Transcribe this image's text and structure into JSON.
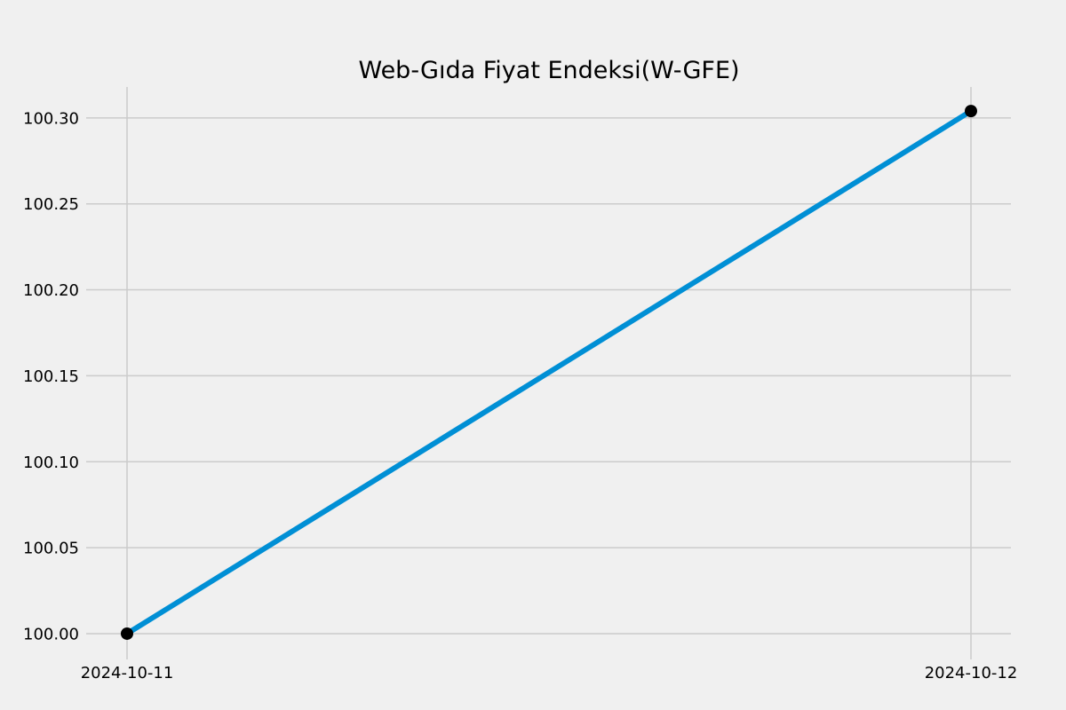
{
  "chart_data": {
    "type": "line",
    "title": "Web-Gıda Fiyat Endeksi(W-GFE)",
    "xlabel": "",
    "ylabel": "",
    "x": [
      "2024-10-11",
      "2024-10-12"
    ],
    "series": [
      {
        "values": [
          100.0,
          100.304
        ],
        "color": "#008fd5",
        "marker_color": "#000000",
        "marker": "circle"
      }
    ],
    "x_ticks": [
      "2024-10-11",
      "2024-10-12"
    ],
    "y_ticks": [
      100.0,
      100.05,
      100.1,
      100.15,
      100.2,
      100.25,
      100.3
    ],
    "y_tick_labels": [
      "100.00",
      "100.05",
      "100.10",
      "100.15",
      "100.20",
      "100.25",
      "100.30"
    ],
    "ylim": [
      99.985,
      100.318
    ],
    "grid": true,
    "legend": "none",
    "background_color": "#f0f0f0",
    "grid_color": "#cbcbcb"
  }
}
